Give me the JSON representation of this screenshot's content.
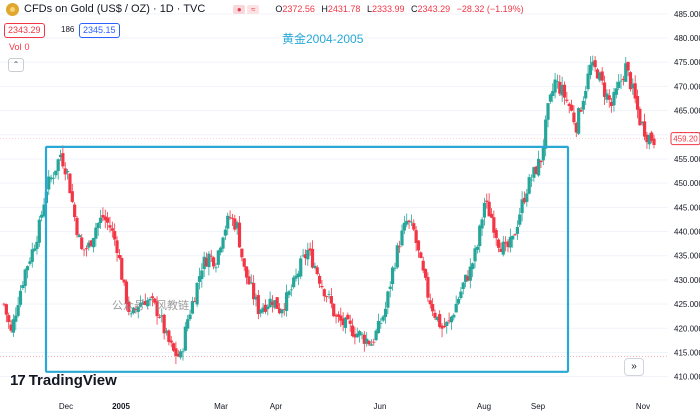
{
  "header": {
    "title": "CFDs on Gold (US$ / OZ) · 1D · TVC",
    "open_label": "O",
    "open": "2372.56",
    "high_label": "H",
    "high": "2431.78",
    "low_label": "L",
    "low": "2333.99",
    "close_label": "C",
    "close": "2343.29",
    "change": "−28.32 (−1.19%)"
  },
  "bid": "2343.29",
  "spread": "186",
  "ask": "2345.15",
  "volume_label": "Vol",
  "volume_value": "0",
  "annotation": "黄金2004-2005",
  "watermark": "公众号：风教链",
  "branding": "TradingView",
  "colors": {
    "up": "#26a69a",
    "down": "#f23645",
    "box": "#29a8d6",
    "price_tag": "#f23645"
  },
  "icons": {
    "logo": "gold-coin-icon",
    "collapse": "chevron-up-icon",
    "goto": "goto-realtime-icon"
  },
  "chart_data": {
    "type": "candlestick",
    "y_axis_ticks": [
      410,
      415,
      420,
      425,
      430,
      435,
      440,
      445,
      450,
      455,
      460,
      465,
      470,
      475,
      480,
      485
    ],
    "ylim": [
      406,
      486
    ],
    "x_ticks": [
      "Dec",
      "2005",
      "Mar",
      "Apr",
      "Jun",
      "Aug",
      "Sep",
      "Nov"
    ],
    "last_price_label": "459.20",
    "last_price": 459.2,
    "current_bid_line": 414.2,
    "highlight_box": {
      "y_top": 457.5,
      "y_bottom": 411.0,
      "x_start": "late Nov 2004",
      "x_end": "mid Sep 2005"
    },
    "close_path": [
      [
        0,
        425
      ],
      [
        3,
        419
      ],
      [
        6,
        426
      ],
      [
        9,
        432
      ],
      [
        12,
        436
      ],
      [
        15,
        441
      ],
      [
        18,
        449
      ],
      [
        21,
        452
      ],
      [
        24,
        456
      ],
      [
        27,
        452
      ],
      [
        30,
        443
      ],
      [
        33,
        436
      ],
      [
        36,
        437
      ],
      [
        39,
        441
      ],
      [
        42,
        443
      ],
      [
        45,
        441
      ],
      [
        48,
        437
      ],
      [
        51,
        428
      ],
      [
        54,
        422
      ],
      [
        57,
        425
      ],
      [
        60,
        426
      ],
      [
        63,
        425
      ],
      [
        66,
        423
      ],
      [
        69,
        418
      ],
      [
        72,
        415
      ],
      [
        75,
        414
      ],
      [
        78,
        422
      ],
      [
        81,
        427
      ],
      [
        84,
        433
      ],
      [
        87,
        435
      ],
      [
        90,
        434
      ],
      [
        93,
        440
      ],
      [
        96,
        443
      ],
      [
        99,
        441
      ],
      [
        102,
        432
      ],
      [
        105,
        428
      ],
      [
        108,
        424
      ],
      [
        111,
        425
      ],
      [
        114,
        426
      ],
      [
        117,
        424
      ],
      [
        120,
        426
      ],
      [
        123,
        429
      ],
      [
        126,
        433
      ],
      [
        129,
        436
      ],
      [
        132,
        433
      ],
      [
        135,
        429
      ],
      [
        138,
        426
      ],
      [
        141,
        422
      ],
      [
        144,
        421
      ],
      [
        147,
        420
      ],
      [
        150,
        419
      ],
      [
        153,
        418
      ],
      [
        156,
        417
      ],
      [
        159,
        420
      ],
      [
        162,
        424
      ],
      [
        165,
        432
      ],
      [
        168,
        438
      ],
      [
        171,
        442
      ],
      [
        174,
        440
      ],
      [
        177,
        433
      ],
      [
        180,
        427
      ],
      [
        183,
        423
      ],
      [
        186,
        420
      ],
      [
        189,
        421
      ],
      [
        192,
        425
      ],
      [
        195,
        429
      ],
      [
        198,
        432
      ],
      [
        201,
        437
      ],
      [
        204,
        446
      ],
      [
        207,
        443
      ],
      [
        210,
        438
      ],
      [
        213,
        436
      ],
      [
        216,
        438
      ],
      [
        219,
        444
      ],
      [
        222,
        449
      ],
      [
        225,
        452
      ],
      [
        228,
        455
      ],
      [
        231,
        465
      ],
      [
        234,
        471
      ],
      [
        237,
        469
      ],
      [
        240,
        466
      ],
      [
        243,
        462
      ],
      [
        246,
        468
      ],
      [
        249,
        474
      ],
      [
        252,
        473
      ],
      [
        255,
        469
      ],
      [
        258,
        466
      ],
      [
        261,
        470
      ],
      [
        264,
        474
      ],
      [
        267,
        469
      ],
      [
        270,
        463
      ],
      [
        273,
        460
      ],
      [
        276,
        459
      ]
    ]
  }
}
